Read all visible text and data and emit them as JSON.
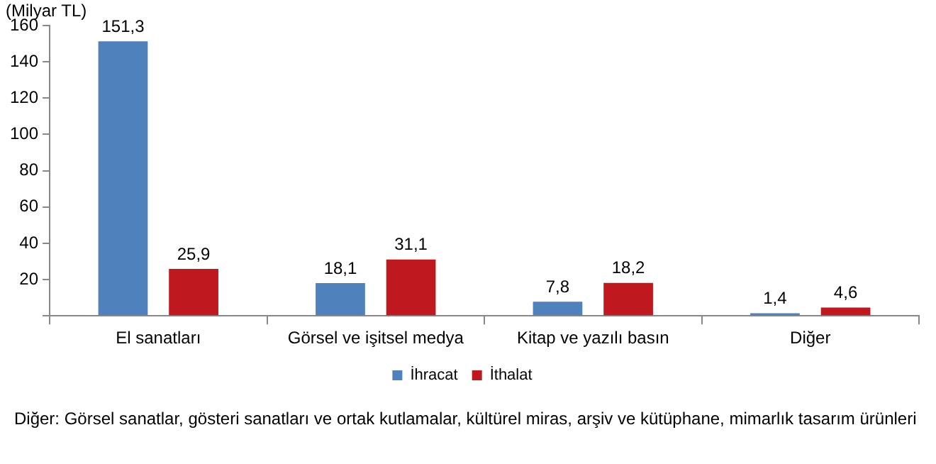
{
  "chart_data": {
    "type": "bar",
    "ylabel": "(Milyar TL)",
    "categories": [
      "El sanatları",
      "Görsel ve işitsel medya",
      "Kitap ve yazılı basın",
      "Diğer"
    ],
    "series": [
      {
        "name": "İhracat",
        "color": "#4f81bd",
        "values": [
          151.3,
          18.1,
          7.8,
          1.4
        ],
        "value_labels": [
          "151,3",
          "18,1",
          "7,8",
          "1,4"
        ]
      },
      {
        "name": "İthalat",
        "color": "#c0181f",
        "values": [
          25.9,
          31.1,
          18.2,
          4.6
        ],
        "value_labels": [
          "25,9",
          "31,1",
          "18,2",
          "4,6"
        ]
      }
    ],
    "ylim": [
      0,
      160
    ],
    "yticks": [
      {
        "value": 0,
        "label": null
      },
      20,
      40,
      60,
      80,
      100,
      120,
      140,
      160
    ],
    "grid": false,
    "legend": "bottom",
    "annotations": [
      "Diğer: Görsel sanatlar, gösteri sanatları ve ortak kutlamalar, kültürel miras, arşiv ve kütüphane, mimarlık tasarım ürünleri"
    ]
  }
}
